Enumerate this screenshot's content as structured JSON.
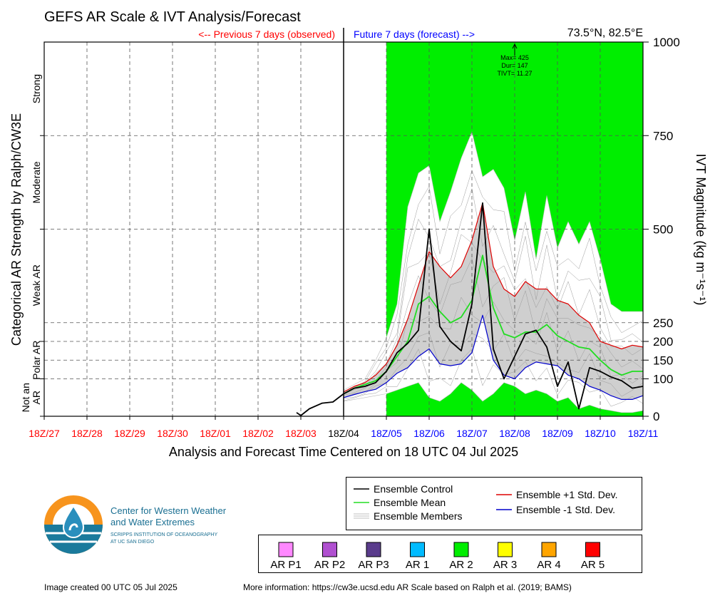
{
  "title": "GEFS AR Scale & IVT Analysis/Forecast",
  "location": "73.5°N, 82.5°E",
  "observed_label": "<-- Previous 7 days (observed)",
  "forecast_label": "Future 7 days (forecast) -->",
  "annotation": {
    "max": "Max= 425",
    "dur": "Dur= 147",
    "tivt": "TIVT= 11.27"
  },
  "footer_left": "Image created 00 UTC 05 Jul 2025",
  "footer_right": "More information: https://cw3e.ucsd.edu AR Scale based on Ralph et al. (2019; BAMS)",
  "logo": {
    "line1": "Center for Western Weather",
    "line2": "and Water Extremes",
    "line3": "SCRIPPS INSTITUTION OF OCEANOGRAPHY",
    "line4": "AT UC SAN DIEGO"
  },
  "colors": {
    "ar2_fill": "#00ee00",
    "control": "#000000",
    "mean": "#22dd22",
    "plus_std": "#dd0000",
    "minus_std": "#0000cc",
    "members": "#999999",
    "observed": "#ff0000",
    "forecast": "#0000ff"
  },
  "chart_data": {
    "type": "line",
    "xlabel": "Analysis and Forecast Time Centered on 18 UTC 04 Jul 2025",
    "ylabel_left": "Categorical AR Strength by Ralph/CW3E",
    "ylabel_right": "IVT Magnitude (kg m⁻¹s⁻¹)",
    "x_ticks": [
      "18Z/27",
      "18Z/28",
      "18Z/29",
      "18Z/30",
      "18Z/01",
      "18Z/02",
      "18Z/03",
      "18Z/04",
      "18Z/05",
      "18Z/06",
      "18Z/07",
      "18Z/08",
      "18Z/09",
      "18Z/10",
      "18Z/11"
    ],
    "x_range_days": [
      -7,
      7
    ],
    "y_ticks": [
      0,
      100,
      150,
      200,
      250,
      500,
      750,
      1000
    ],
    "ylim": [
      0,
      1000
    ],
    "ar_categories": [
      "Not an AR",
      "Polar AR",
      "Weak AR",
      "Moderate",
      "Strong"
    ],
    "ar2_shading_days": [
      1,
      7
    ],
    "series": [
      {
        "name": "Ensemble Control",
        "key": "control",
        "x": [
          -1.1,
          -1.0,
          -0.8,
          -0.5,
          -0.25,
          0,
          0.25,
          0.5,
          0.75,
          1,
          1.25,
          1.5,
          1.75,
          2,
          2.25,
          2.5,
          2.75,
          3,
          3.25,
          3.5,
          3.75,
          4,
          4.25,
          4.5,
          4.75,
          5,
          5.25,
          5.5,
          5.75,
          6,
          6.25,
          6.5,
          6.75,
          7
        ],
        "y": [
          10,
          2,
          20,
          35,
          38,
          60,
          75,
          80,
          90,
          120,
          170,
          195,
          230,
          500,
          240,
          200,
          175,
          300,
          570,
          180,
          100,
          160,
          220,
          230,
          185,
          80,
          145,
          20,
          130,
          120,
          105,
          95,
          75,
          80
        ]
      },
      {
        "name": "Ensemble Mean",
        "key": "mean",
        "x": [
          0,
          0.25,
          0.5,
          0.75,
          1,
          1.25,
          1.5,
          1.75,
          2,
          2.25,
          2.5,
          2.75,
          3,
          3.25,
          3.5,
          3.75,
          4,
          4.25,
          4.5,
          4.75,
          5,
          5.25,
          5.5,
          5.75,
          6,
          6.25,
          6.5,
          6.75,
          7
        ],
        "y": [
          60,
          75,
          85,
          95,
          120,
          160,
          200,
          300,
          320,
          280,
          250,
          265,
          310,
          430,
          290,
          220,
          210,
          225,
          225,
          245,
          215,
          200,
          185,
          180,
          150,
          125,
          110,
          120,
          120
        ]
      },
      {
        "name": "Ensemble +1 Std. Dev.",
        "key": "plus_std",
        "x": [
          0,
          0.25,
          0.5,
          0.75,
          1,
          1.25,
          1.5,
          1.75,
          2,
          2.25,
          2.5,
          2.75,
          3,
          3.25,
          3.5,
          3.75,
          4,
          4.25,
          4.5,
          4.75,
          5,
          5.25,
          5.5,
          5.75,
          6,
          6.25,
          6.5,
          6.75,
          7
        ],
        "y": [
          65,
          80,
          90,
          110,
          140,
          190,
          260,
          350,
          440,
          400,
          370,
          400,
          470,
          570,
          400,
          340,
          320,
          360,
          340,
          340,
          310,
          300,
          270,
          250,
          200,
          190,
          180,
          190,
          185
        ]
      },
      {
        "name": "Ensemble -1 Std. Dev.",
        "key": "minus_std",
        "x": [
          0,
          0.25,
          0.5,
          0.75,
          1,
          1.25,
          1.5,
          1.75,
          2,
          2.25,
          2.5,
          2.75,
          3,
          3.25,
          3.5,
          3.75,
          4,
          4.25,
          4.5,
          4.75,
          5,
          5.25,
          5.5,
          5.75,
          6,
          6.25,
          6.5,
          6.75,
          7
        ],
        "y": [
          50,
          58,
          66,
          72,
          90,
          115,
          130,
          160,
          180,
          140,
          135,
          140,
          170,
          270,
          150,
          110,
          100,
          130,
          145,
          140,
          135,
          110,
          100,
          80,
          70,
          55,
          45,
          45,
          55
        ]
      },
      {
        "name": "Ensemble Members",
        "key": "members_max",
        "x": [
          0,
          0.25,
          0.5,
          0.75,
          1,
          1.25,
          1.5,
          1.75,
          2,
          2.25,
          2.5,
          2.75,
          3,
          3.25,
          3.5,
          3.75,
          4,
          4.25,
          4.5,
          4.75,
          5,
          5.25,
          5.5,
          5.75,
          6,
          6.25,
          6.5,
          6.75,
          7
        ],
        "y": [
          70,
          85,
          100,
          150,
          210,
          300,
          560,
          650,
          670,
          520,
          600,
          690,
          760,
          640,
          660,
          610,
          470,
          600,
          420,
          590,
          450,
          520,
          460,
          520,
          420,
          300,
          280,
          280,
          280
        ]
      },
      {
        "name": "Ensemble Members",
        "key": "members_min",
        "x": [
          0,
          0.25,
          0.5,
          0.75,
          1,
          1.25,
          1.5,
          1.75,
          2,
          2.25,
          2.5,
          2.75,
          3,
          3.25,
          3.5,
          3.75,
          4,
          4.25,
          4.5,
          4.75,
          5,
          5.25,
          5.5,
          5.75,
          6,
          6.25,
          6.5,
          6.75,
          7
        ],
        "y": [
          40,
          45,
          50,
          55,
          60,
          70,
          80,
          90,
          50,
          40,
          60,
          90,
          70,
          40,
          60,
          90,
          80,
          60,
          70,
          60,
          40,
          50,
          20,
          30,
          20,
          15,
          10,
          10,
          15
        ]
      }
    ],
    "legend": [
      "Ensemble Control",
      "Ensemble Mean",
      "Ensemble Members",
      "Ensemble +1 Std. Dev.",
      "Ensemble -1 Std. Dev."
    ],
    "ar_scale_legend": [
      {
        "label": "AR P1",
        "color": "#ff88ff"
      },
      {
        "label": "AR P2",
        "color": "#b050d0"
      },
      {
        "label": "AR P3",
        "color": "#5a3c8c"
      },
      {
        "label": "AR 1",
        "color": "#00bbff"
      },
      {
        "label": "AR 2",
        "color": "#00ee00"
      },
      {
        "label": "AR 3",
        "color": "#ffff00"
      },
      {
        "label": "AR 4",
        "color": "#ffa500"
      },
      {
        "label": "AR 5",
        "color": "#ff0000"
      }
    ]
  }
}
